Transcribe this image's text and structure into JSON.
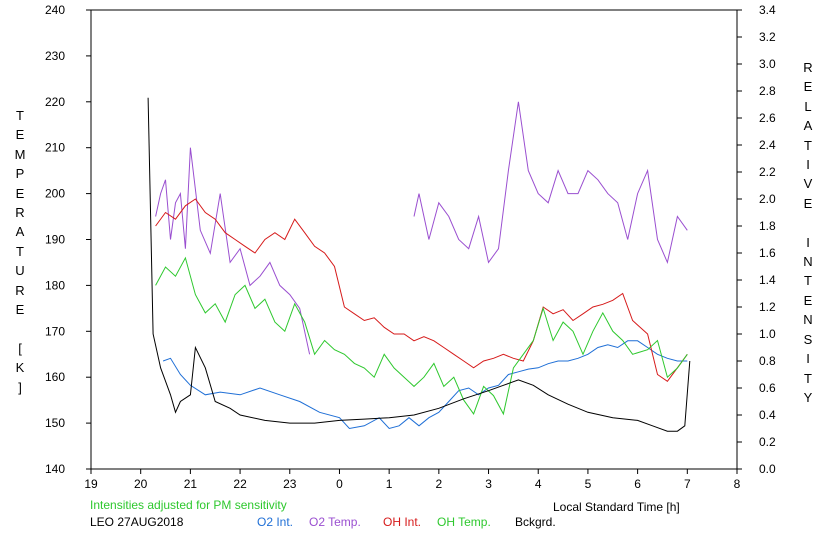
{
  "chart_data": {
    "type": "line",
    "title": "",
    "xlabel": "Local Standard Time [h]",
    "ylabel_left": "TEMPERATURE [K]",
    "ylabel_right": "RELATIVE INTENSITY",
    "xlim": [
      19,
      8
    ],
    "xticks": [
      "19",
      "20",
      "21",
      "22",
      "23",
      "0",
      "1",
      "2",
      "3",
      "4",
      "5",
      "6",
      "7",
      "8"
    ],
    "ylim_left": [
      140,
      240
    ],
    "yticks_left": [
      "140",
      "150",
      "160",
      "170",
      "180",
      "190",
      "200",
      "210",
      "220",
      "230",
      "240"
    ],
    "ylim_right": [
      0.0,
      3.4
    ],
    "yticks_right": [
      "0.0",
      "0.2",
      "0.4",
      "0.6",
      "0.8",
      "1.0",
      "1.2",
      "1.4",
      "1.6",
      "1.8",
      "2.0",
      "2.2",
      "2.4",
      "2.6",
      "2.8",
      "3.0",
      "3.2",
      "3.4"
    ],
    "note": "Intensities adjusted for PM sensitivity",
    "station_date": "LEO 27AUG2018",
    "grid": false,
    "legend_position": "bottom",
    "series": [
      {
        "name": "O2 Int.",
        "color": "#1f6fd6",
        "axis": "right",
        "x": [
          20.45,
          20.6,
          20.8,
          21.0,
          21.3,
          21.6,
          22.0,
          22.4,
          22.8,
          23.2,
          23.6,
          24.0,
          24.2,
          24.5,
          24.8,
          25.0,
          25.2,
          25.4,
          25.6,
          25.8,
          26.0,
          26.2,
          26.4,
          26.6,
          26.8,
          27.0,
          27.2,
          27.4,
          27.6,
          27.8,
          28.0,
          28.2,
          28.4,
          28.6,
          28.8,
          29.0,
          29.2,
          29.4,
          29.6,
          29.8,
          30.0,
          30.2,
          30.4,
          30.6,
          30.8,
          31.0
        ],
        "values": [
          0.8,
          0.82,
          0.7,
          0.62,
          0.55,
          0.57,
          0.55,
          0.6,
          0.55,
          0.5,
          0.42,
          0.38,
          0.3,
          0.32,
          0.38,
          0.3,
          0.32,
          0.38,
          0.32,
          0.38,
          0.42,
          0.5,
          0.58,
          0.6,
          0.55,
          0.6,
          0.62,
          0.7,
          0.72,
          0.74,
          0.75,
          0.78,
          0.8,
          0.8,
          0.82,
          0.85,
          0.9,
          0.92,
          0.9,
          0.95,
          0.95,
          0.9,
          0.85,
          0.82,
          0.8,
          0.8
        ]
      },
      {
        "name": "O2 Temp.",
        "color": "#9a4fd0",
        "axis": "left",
        "x": [
          20.3,
          20.4,
          20.5,
          20.6,
          20.7,
          20.8,
          20.9,
          21.0,
          21.2,
          21.4,
          21.6,
          21.8,
          22.0,
          22.2,
          22.4,
          22.6,
          22.8,
          23.0,
          23.2,
          23.4,
          25.5,
          25.6,
          25.8,
          26.0,
          26.2,
          26.4,
          26.6,
          26.8,
          27.0,
          27.2,
          27.4,
          27.6,
          27.8,
          28.0,
          28.2,
          28.4,
          28.6,
          28.8,
          29.0,
          29.2,
          29.4,
          29.6,
          29.8,
          30.0,
          30.2,
          30.4,
          30.6,
          30.8,
          31.0
        ],
        "values": [
          195,
          200,
          203,
          190,
          198,
          200,
          188,
          210,
          192,
          187,
          200,
          185,
          188,
          180,
          182,
          185,
          180,
          178,
          175,
          165,
          195,
          200,
          190,
          198,
          195,
          190,
          188,
          195,
          185,
          188,
          205,
          220,
          205,
          200,
          198,
          205,
          200,
          200,
          205,
          203,
          200,
          198,
          190,
          200,
          205,
          190,
          185,
          195,
          192
        ]
      },
      {
        "name": "OH Int.",
        "color": "#d61a1a",
        "axis": "right",
        "x": [
          20.3,
          20.5,
          20.7,
          20.9,
          21.1,
          21.3,
          21.5,
          21.7,
          21.9,
          22.1,
          22.3,
          22.5,
          22.7,
          22.9,
          23.1,
          23.3,
          23.5,
          23.7,
          23.9,
          24.1,
          24.3,
          24.5,
          24.7,
          24.9,
          25.1,
          25.3,
          25.5,
          25.7,
          25.9,
          26.1,
          26.3,
          26.5,
          26.7,
          26.9,
          27.1,
          27.3,
          27.5,
          27.7,
          27.9,
          28.1,
          28.3,
          28.5,
          28.7,
          28.9,
          29.1,
          29.3,
          29.5,
          29.7,
          29.9,
          30.2,
          30.4,
          30.6,
          30.8,
          31.0
        ],
        "values": [
          1.8,
          1.9,
          1.85,
          1.95,
          2.0,
          1.9,
          1.85,
          1.75,
          1.7,
          1.65,
          1.6,
          1.7,
          1.75,
          1.7,
          1.85,
          1.75,
          1.65,
          1.6,
          1.5,
          1.2,
          1.15,
          1.1,
          1.12,
          1.05,
          1.0,
          1.0,
          0.95,
          0.98,
          0.95,
          0.9,
          0.85,
          0.8,
          0.75,
          0.8,
          0.82,
          0.85,
          0.82,
          0.8,
          0.95,
          1.2,
          1.15,
          1.18,
          1.1,
          1.15,
          1.2,
          1.22,
          1.25,
          1.3,
          1.1,
          1.0,
          0.7,
          0.65,
          0.75,
          0.85
        ]
      },
      {
        "name": "OH Temp.",
        "color": "#2ec82e",
        "axis": "left",
        "x": [
          20.3,
          20.5,
          20.7,
          20.9,
          21.1,
          21.3,
          21.5,
          21.7,
          21.9,
          22.1,
          22.3,
          22.5,
          22.7,
          22.9,
          23.1,
          23.3,
          23.5,
          23.7,
          23.9,
          24.1,
          24.3,
          24.5,
          24.7,
          24.9,
          25.1,
          25.3,
          25.5,
          25.7,
          25.9,
          26.1,
          26.3,
          26.5,
          26.7,
          26.9,
          27.1,
          27.3,
          27.5,
          27.7,
          27.9,
          28.1,
          28.3,
          28.5,
          28.7,
          28.9,
          29.1,
          29.3,
          29.5,
          29.7,
          29.9,
          30.2,
          30.4,
          30.6,
          30.8,
          31.0
        ],
        "values": [
          180,
          184,
          182,
          186,
          178,
          174,
          176,
          172,
          178,
          180,
          175,
          177,
          172,
          170,
          176,
          172,
          165,
          168,
          166,
          165,
          163,
          162,
          160,
          165,
          162,
          160,
          158,
          160,
          163,
          158,
          160,
          155,
          152,
          158,
          156,
          152,
          162,
          165,
          168,
          175,
          168,
          172,
          170,
          165,
          170,
          174,
          170,
          168,
          165,
          166,
          168,
          160,
          162,
          165
        ]
      },
      {
        "name": "Bckgrd.",
        "color": "#000000",
        "axis": "right",
        "x": [
          20.15,
          20.25,
          20.4,
          20.6,
          20.7,
          20.8,
          21.0,
          21.1,
          21.3,
          21.5,
          21.8,
          22.0,
          22.5,
          23.0,
          23.5,
          24.0,
          24.5,
          25.0,
          25.5,
          26.0,
          26.5,
          27.0,
          27.3,
          27.6,
          27.9,
          28.2,
          28.6,
          29.0,
          29.5,
          30.0,
          30.3,
          30.6,
          30.8,
          30.95,
          31.05
        ],
        "values": [
          2.75,
          1.0,
          0.75,
          0.55,
          0.42,
          0.5,
          0.55,
          0.9,
          0.75,
          0.5,
          0.45,
          0.4,
          0.36,
          0.34,
          0.34,
          0.36,
          0.37,
          0.38,
          0.4,
          0.45,
          0.52,
          0.58,
          0.62,
          0.66,
          0.62,
          0.55,
          0.48,
          0.42,
          0.38,
          0.36,
          0.32,
          0.28,
          0.28,
          0.32,
          0.8
        ]
      }
    ]
  }
}
